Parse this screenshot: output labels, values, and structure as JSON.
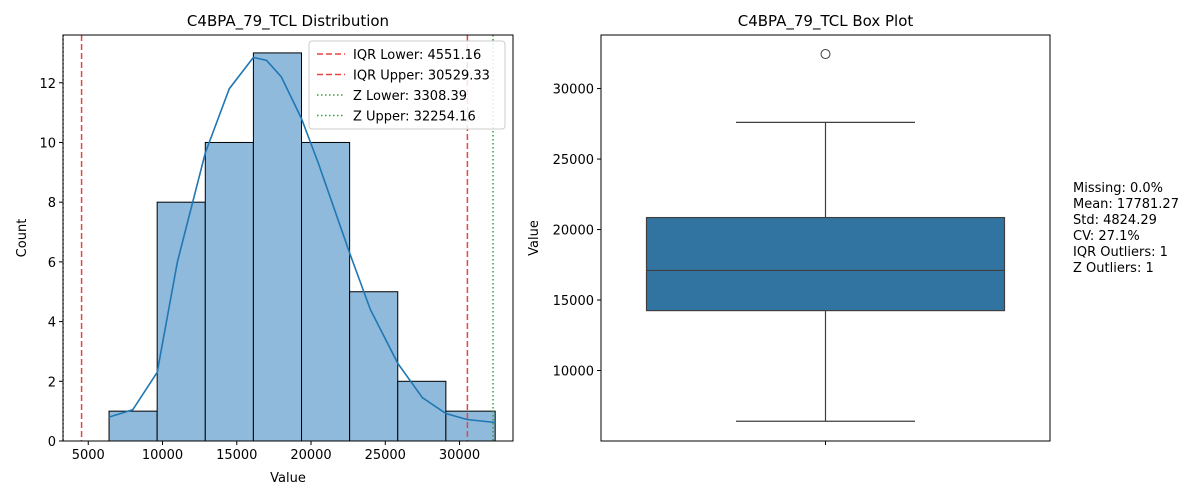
{
  "colors": {
    "hist_fill": "#8fbadb",
    "kde_line": "#1f77b4",
    "box_fill": "#3274a1",
    "iqr_line": "#e84444",
    "z_line": "#33a033"
  },
  "chart_data": [
    {
      "type": "histogram",
      "title": "C4BPA_79_TCL Distribution",
      "xlabel": "Value",
      "ylabel": "Count",
      "xlim": [
        3300,
        33600
      ],
      "ylim": [
        0,
        13.6
      ],
      "xticks": [
        5000,
        10000,
        15000,
        20000,
        25000,
        30000
      ],
      "yticks": [
        0,
        2,
        4,
        6,
        8,
        10,
        12
      ],
      "bins": [
        {
          "x0": 6400,
          "x1": 9640,
          "count": 1
        },
        {
          "x0": 9640,
          "x1": 12880,
          "count": 8
        },
        {
          "x0": 12880,
          "x1": 16120,
          "count": 10
        },
        {
          "x0": 16120,
          "x1": 19360,
          "count": 13
        },
        {
          "x0": 19360,
          "x1": 22600,
          "count": 10
        },
        {
          "x0": 22600,
          "x1": 25840,
          "count": 5
        },
        {
          "x0": 25840,
          "x1": 29080,
          "count": 2
        },
        {
          "x0": 29080,
          "x1": 32400,
          "count": 1
        }
      ],
      "kde": {
        "x": [
          6400,
          8000,
          9640,
          11000,
          12880,
          14500,
          16120,
          17000,
          18000,
          19360,
          20500,
          22600,
          24000,
          25840,
          27500,
          29080,
          30500,
          32400
        ],
        "y": [
          0.8,
          1.05,
          2.3,
          6.0,
          9.65,
          11.8,
          12.85,
          12.75,
          12.2,
          10.8,
          9.3,
          6.3,
          4.4,
          2.6,
          1.45,
          0.92,
          0.72,
          0.62
        ]
      },
      "reference_lines": [
        {
          "label": "IQR Lower: 4551.16",
          "value": 4551.16,
          "style": "dashed",
          "color": "#e84444"
        },
        {
          "label": "IQR Upper: 30529.33",
          "value": 30529.33,
          "style": "dashed",
          "color": "#e84444"
        },
        {
          "label": "Z Lower: 3308.39",
          "value": 3308.39,
          "style": "dotted",
          "color": "#33a033"
        },
        {
          "label": "Z Upper: 32254.16",
          "value": 32254.16,
          "style": "dotted",
          "color": "#33a033"
        }
      ],
      "legend_position": "top-right",
      "grid": false
    },
    {
      "type": "box",
      "title": "C4BPA_79_TCL Box Plot",
      "xlabel": "",
      "ylabel": "Value",
      "ylim": [
        5000,
        33800
      ],
      "yticks": [
        10000,
        15000,
        20000,
        25000,
        30000
      ],
      "min": 6400,
      "q1": 14250,
      "median": 17100,
      "q3": 20850,
      "max": 27600,
      "outliers": [
        32450
      ],
      "grid": false
    }
  ],
  "stats_text": {
    "missing": "Missing: 0.0%",
    "mean": "Mean: 17781.27",
    "std": "Std: 4824.29",
    "cv": "CV: 27.1%",
    "iqr_outliers": "IQR Outliers: 1",
    "z_outliers": "Z Outliers: 1"
  }
}
